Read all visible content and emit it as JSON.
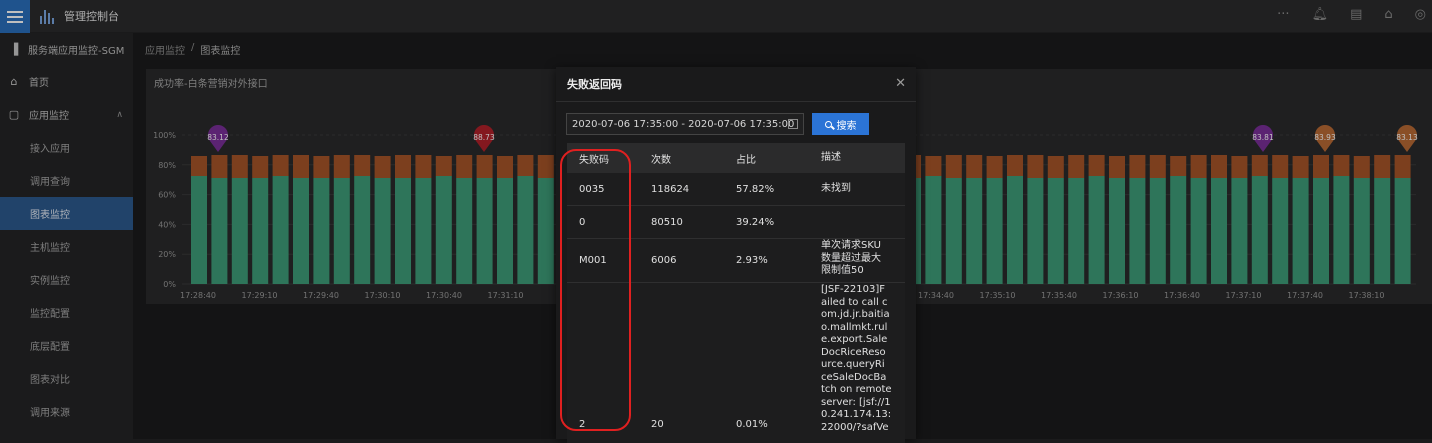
{
  "app": {
    "title": "管理控制台"
  },
  "topbar": {
    "icons": [
      "more-icon",
      "bell-icon",
      "doc-icon",
      "shirt-icon",
      "globe-icon"
    ]
  },
  "sidebar": {
    "header": "服务端应用监控-SGM",
    "items": [
      {
        "label": "首页",
        "icon": "home-icon"
      },
      {
        "label": "应用监控",
        "icon": "monitor-icon",
        "expanded": true
      },
      {
        "label": "接入应用"
      },
      {
        "label": "调用查询"
      },
      {
        "label": "图表监控",
        "active": true
      },
      {
        "label": "主机监控"
      },
      {
        "label": "实例监控"
      },
      {
        "label": "监控配置"
      },
      {
        "label": "底层配置"
      },
      {
        "label": "图表对比"
      },
      {
        "label": "调用来源"
      }
    ]
  },
  "breadcrumb": {
    "root": "应用监控",
    "sep": "/",
    "current": "图表监控"
  },
  "panel": {
    "title": "成功率-白条营销对外接口"
  },
  "chart_data": {
    "type": "bar",
    "y_ticks": [
      "100%",
      "80%",
      "60%",
      "40%",
      "20%",
      "0%"
    ],
    "x_ticks_left": [
      "17:28:40",
      "17:29:10",
      "17:29:40",
      "17:30:10",
      "17:30:40",
      "17:31:10"
    ],
    "x_ticks_right": [
      "17:34:40",
      "17:35:10",
      "17:35:40",
      "17:36:10",
      "17:36:40",
      "17:37:10",
      "17:37:40",
      "17:38:10"
    ],
    "markers": [
      "83.12",
      "88.73",
      "83.81",
      "83.93",
      "83.13"
    ],
    "colors": {
      "success": "#3e9c78",
      "fail": "#a65529",
      "marker_purple": "#7a2f99",
      "marker_red": "#b0202a",
      "marker_orange": "#b86a35"
    }
  },
  "modal": {
    "title": "失败返回码",
    "date_range": "2020-07-06 17:35:00 - 2020-07-06 17:35:00",
    "search_label": "搜索",
    "columns": [
      "失败码",
      "次数",
      "占比",
      "描述"
    ],
    "rows": [
      {
        "code": "0035",
        "count": "118624",
        "ratio": "57.82%",
        "desc": [
          "未找到"
        ]
      },
      {
        "code": "0",
        "count": "80510",
        "ratio": "39.24%",
        "desc": []
      },
      {
        "code": "M001",
        "count": "6006",
        "ratio": "2.93%",
        "desc": [
          "单次请求SKU",
          "数量超过最大",
          "限制值50"
        ]
      },
      {
        "code": "2",
        "count": "20",
        "ratio": "0.01%",
        "desc": [
          "[JSF-22103]F",
          "ailed to call c",
          "om.jd.jr.baitia",
          "o.mallmkt.rul",
          "e.export.Sale",
          "DocRiceReso",
          "urce.queryRi",
          "ceSaleDocBa",
          "tch on remote",
          "server: [jsf://1",
          "0.241.174.13:",
          "22000/?safVe"
        ]
      }
    ]
  }
}
